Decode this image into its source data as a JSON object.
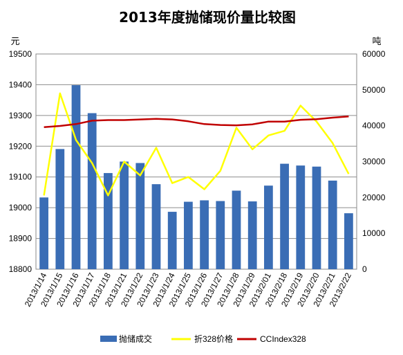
{
  "chart_data": {
    "type": "bar",
    "title": "2013年度抛储现价量比较图",
    "left_axis_unit": "元",
    "right_axis_unit": "吨",
    "categories": [
      "2013/1/14",
      "2013/1/15",
      "2013/1/16",
      "2013/1/17",
      "2013/1/18",
      "2013/1/21",
      "2013/1/22",
      "2013/1/23",
      "2013/1/24",
      "2013/1/25",
      "2013/1/26",
      "2013/1/27",
      "2013/1/28",
      "2013/1/29",
      "2013/2/01",
      "2013/2/18",
      "2013/2/19",
      "2013/2/20",
      "2013/2/21",
      "2013/2/22"
    ],
    "ylim_left": [
      18800,
      19500
    ],
    "yticks_left": [
      18800,
      18900,
      19000,
      19100,
      19200,
      19300,
      19400,
      19500
    ],
    "ylim_right": [
      0,
      60000
    ],
    "yticks_right": [
      0,
      10000,
      20000,
      30000,
      40000,
      50000,
      60000
    ],
    "grid": true,
    "legend_position": "bottom",
    "series": [
      {
        "name": "抛储成交",
        "kind": "bar",
        "axis": "right",
        "color": "#3a6db5",
        "values": [
          20000,
          33500,
          51300,
          43500,
          26800,
          30000,
          29600,
          23700,
          16000,
          18800,
          19200,
          19000,
          21900,
          18900,
          23300,
          29400,
          28900,
          28600,
          24700,
          15600
        ]
      },
      {
        "name": "折328价格",
        "kind": "line",
        "axis": "left",
        "color": "#ffff00",
        "values": [
          19040,
          19372,
          19220,
          19145,
          19040,
          19150,
          19105,
          19195,
          19080,
          19100,
          19060,
          19120,
          19260,
          19190,
          19235,
          19250,
          19332,
          19280,
          19210,
          19110
        ]
      },
      {
        "name": "CCIndex328",
        "kind": "line",
        "axis": "left",
        "color": "#c00000",
        "values": [
          19262,
          19266,
          19272,
          19283,
          19285,
          19285,
          19287,
          19289,
          19287,
          19281,
          19272,
          19269,
          19268,
          19271,
          19280,
          19280,
          19286,
          19288,
          19293,
          19297
        ]
      }
    ]
  }
}
